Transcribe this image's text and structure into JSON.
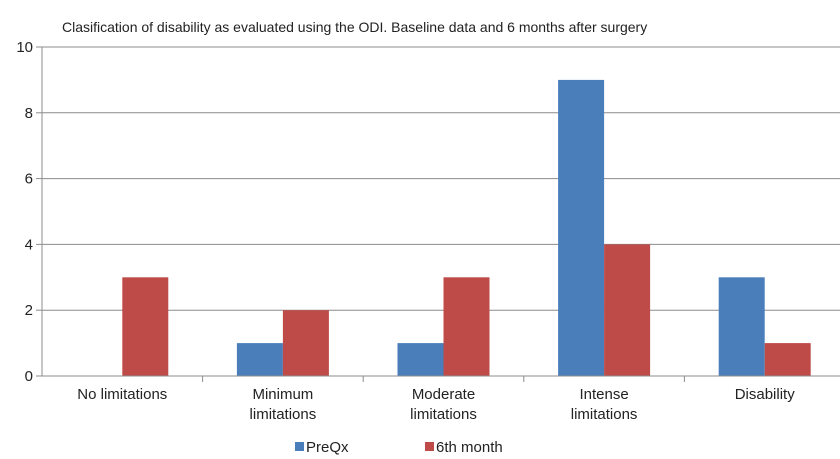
{
  "chart_data": {
    "type": "bar",
    "title": "Clasification of disability as evaluated using the ODI. Baseline data and 6 months after surgery",
    "categories": [
      [
        "No limitations"
      ],
      [
        "Minimum",
        "limitations"
      ],
      [
        "Moderate",
        "limitations"
      ],
      [
        "Intense",
        "limitations"
      ],
      [
        "Disability"
      ]
    ],
    "series": [
      {
        "name": "PreQx",
        "color": "#4a7ebb",
        "values": [
          0,
          1,
          1,
          9,
          3
        ]
      },
      {
        "name": "6th month",
        "color": "#be4b48",
        "values": [
          3,
          2,
          3,
          4,
          1
        ]
      }
    ],
    "ylim": [
      0,
      10
    ],
    "yticks": [
      "0",
      "2",
      "4",
      "6",
      "8",
      "10"
    ],
    "grid": true,
    "legend": "bottom"
  }
}
